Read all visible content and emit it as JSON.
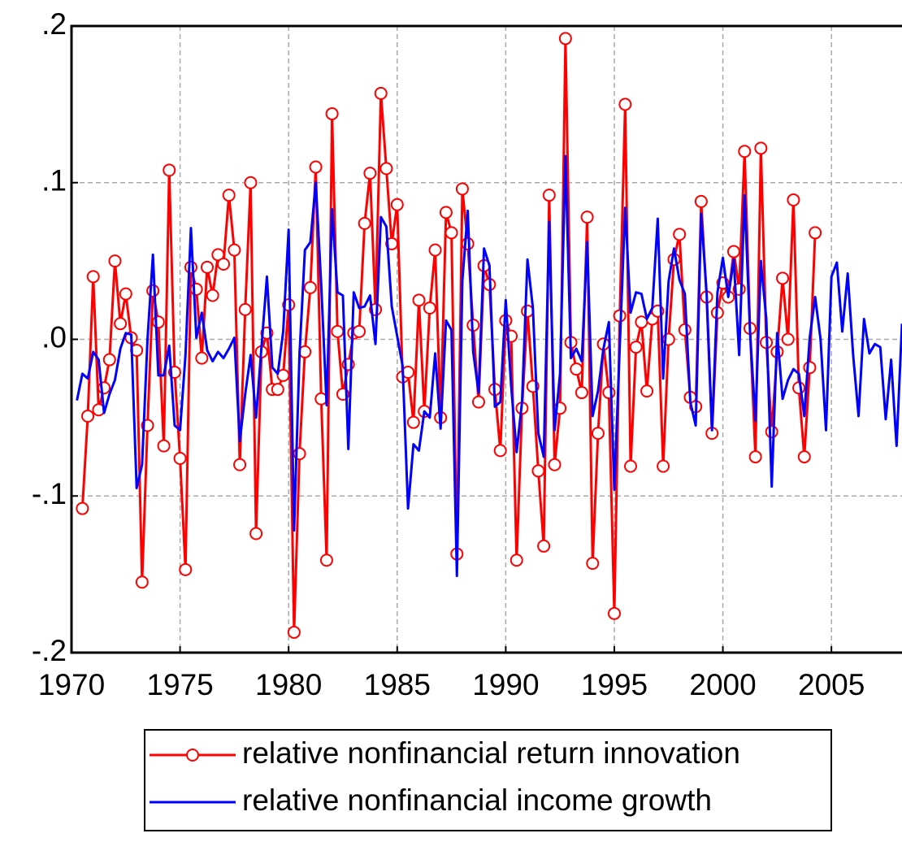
{
  "chart_data": {
    "type": "line",
    "x": [
      1970.25,
      1970.5,
      1970.75,
      1971,
      1971.25,
      1971.5,
      1971.75,
      1972,
      1972.25,
      1972.5,
      1972.75,
      1973,
      1973.25,
      1973.5,
      1973.75,
      1974,
      1974.25,
      1974.5,
      1974.75,
      1975,
      1975.25,
      1975.5,
      1975.75,
      1976,
      1976.25,
      1976.5,
      1976.75,
      1977,
      1977.25,
      1977.5,
      1977.75,
      1978,
      1978.25,
      1978.5,
      1978.75,
      1979,
      1979.25,
      1979.5,
      1979.75,
      1980,
      1980.25,
      1980.5,
      1980.75,
      1981,
      1981.25,
      1981.5,
      1981.75,
      1982,
      1982.25,
      1982.5,
      1982.75,
      1983,
      1983.25,
      1983.5,
      1983.75,
      1984,
      1984.25,
      1984.5,
      1984.75,
      1985,
      1985.25,
      1985.5,
      1985.75,
      1986,
      1986.25,
      1986.5,
      1986.75,
      1987,
      1987.25,
      1987.5,
      1987.75,
      1988,
      1988.25,
      1988.5,
      1988.75,
      1989,
      1989.25,
      1989.5,
      1989.75,
      1990,
      1990.25,
      1990.5,
      1990.75,
      1991,
      1991.25,
      1991.5,
      1991.75,
      1992,
      1992.25,
      1992.5,
      1992.75,
      1993,
      1993.25,
      1993.5,
      1993.75,
      1994,
      1994.25,
      1994.5,
      1994.75,
      1995,
      1995.25,
      1995.5,
      1995.75,
      1996,
      1996.25,
      1996.5,
      1996.75,
      1997,
      1997.25,
      1997.5,
      1997.75,
      1998,
      1998.25,
      1998.5,
      1998.75,
      1999,
      1999.25,
      1999.5,
      1999.75,
      2000,
      2000.25,
      2000.5,
      2000.75,
      2001,
      2001.25,
      2001.5,
      2001.75,
      2002,
      2002.25,
      2002.5,
      2002.75,
      2003,
      2003.25,
      2003.5,
      2003.75,
      2004,
      2004.25,
      2004.5,
      2004.75,
      2005,
      2005.25,
      2005.5,
      2005.75,
      2006,
      2006.25,
      2006.5,
      2006.75,
      2007,
      2007.25,
      2007.5,
      2007.75,
      2008,
      2008.25
    ],
    "series": [
      {
        "name": "relative nonfinancial return innovation",
        "color": "#ff0000",
        "marker": "circle",
        "values": [
          null,
          -0.108,
          -0.049,
          0.04,
          -0.045,
          -0.031,
          -0.013,
          0.05,
          0.01,
          0.029,
          0.001,
          -0.007,
          -0.155,
          -0.055,
          0.031,
          0.011,
          -0.068,
          0.108,
          -0.021,
          -0.076,
          -0.147,
          0.046,
          0.032,
          -0.012,
          0.046,
          0.028,
          0.054,
          0.048,
          0.092,
          0.057,
          -0.08,
          0.019,
          0.1,
          -0.124,
          -0.008,
          0.004,
          -0.032,
          -0.032,
          -0.023,
          0.022,
          -0.187,
          -0.073,
          -0.008,
          0.033,
          0.11,
          -0.038,
          -0.141,
          0.144,
          0.005,
          -0.035,
          -0.016,
          0.004,
          0.005,
          0.074,
          0.106,
          0.019,
          0.157,
          0.109,
          0.061,
          0.086,
          -0.024,
          -0.021,
          -0.053,
          0.025,
          -0.046,
          0.02,
          0.057,
          -0.05,
          0.081,
          0.068,
          -0.137,
          0.096,
          0.061,
          0.009,
          -0.04,
          0.047,
          0.035,
          -0.032,
          -0.071,
          0.012,
          0.002,
          -0.141,
          -0.044,
          0.018,
          -0.03,
          -0.084,
          -0.132,
          0.092,
          -0.08,
          -0.044,
          0.192,
          -0.002,
          -0.019,
          -0.034,
          0.078,
          -0.143,
          -0.06,
          -0.003,
          -0.034,
          -0.175,
          0.015,
          0.15,
          -0.081,
          -0.005,
          0.011,
          -0.033,
          0.013,
          0.018,
          -0.081,
          0.0,
          0.051,
          0.067,
          0.006,
          -0.037,
          -0.043,
          0.088,
          0.027,
          -0.06,
          0.017,
          0.036,
          0.027,
          0.056,
          0.032,
          0.12,
          0.007,
          -0.075,
          0.122,
          -0.002,
          -0.059,
          -0.008,
          0.039,
          0.0,
          0.089,
          -0.031,
          -0.075,
          -0.018,
          0.068,
          null,
          null,
          null,
          null,
          null,
          null,
          null,
          null,
          null,
          null,
          null,
          null,
          null,
          null,
          null,
          null
        ]
      },
      {
        "name": "relative nonfinancial income growth",
        "color": "#0000ff",
        "values": [
          -0.039,
          -0.022,
          -0.025,
          -0.008,
          -0.013,
          -0.047,
          -0.035,
          -0.026,
          -0.006,
          0.004,
          0.003,
          -0.095,
          -0.08,
          0.0,
          0.054,
          -0.023,
          -0.023,
          -0.004,
          -0.055,
          -0.058,
          -0.01,
          0.071,
          0.001,
          0.017,
          -0.007,
          -0.014,
          -0.008,
          -0.012,
          -0.006,
          0.001,
          -0.065,
          -0.035,
          -0.01,
          -0.05,
          -0.005,
          0.04,
          -0.018,
          -0.022,
          0.005,
          0.07,
          -0.122,
          -0.01,
          0.057,
          0.062,
          0.1,
          0.035,
          -0.042,
          0.083,
          0.03,
          0.028,
          -0.07,
          0.03,
          0.02,
          0.021,
          0.028,
          -0.003,
          0.078,
          0.072,
          0.021,
          0.002,
          -0.017,
          -0.108,
          -0.067,
          -0.071,
          -0.046,
          -0.05,
          -0.009,
          -0.057,
          0.012,
          0.006,
          -0.151,
          0.037,
          0.082,
          -0.008,
          -0.034,
          0.058,
          0.047,
          -0.043,
          -0.04,
          0.025,
          -0.03,
          -0.072,
          -0.04,
          0.051,
          0.02,
          -0.06,
          -0.075,
          0.075,
          -0.058,
          -0.022,
          0.117,
          -0.012,
          -0.006,
          -0.014,
          0.062,
          -0.049,
          -0.033,
          -0.006,
          0.011,
          -0.096,
          -0.005,
          0.084,
          0.017,
          0.03,
          0.029,
          0.013,
          0.02,
          0.077,
          -0.025,
          0.037,
          0.058,
          0.038,
          0.029,
          -0.04,
          -0.055,
          0.08,
          0.03,
          -0.058,
          0.03,
          0.052,
          0.027,
          0.051,
          -0.01,
          0.092,
          0.005,
          -0.052,
          0.05,
          0.013,
          -0.094,
          0.004,
          -0.038,
          -0.026,
          -0.019,
          -0.022,
          -0.049,
          0.001,
          0.027,
          0.0,
          -0.058,
          0.04,
          0.049,
          0.005,
          0.042,
          -0.01,
          -0.049,
          0.013,
          -0.009,
          -0.003,
          -0.005,
          -0.051,
          -0.013,
          -0.068,
          0.01
        ]
      }
    ],
    "xlim": [
      1970,
      2008.25
    ],
    "ylim": [
      -0.2,
      0.2
    ],
    "xticks": [
      1970,
      1975,
      1980,
      1985,
      1990,
      1995,
      2000,
      2005
    ],
    "yticks": [
      {
        "value": -0.2,
        "label": "-.2"
      },
      {
        "value": -0.1,
        "label": "-.1"
      },
      {
        "value": 0,
        "label": ".0"
      },
      {
        "value": 0.1,
        "label": ".1"
      },
      {
        "value": 0.2,
        "label": ".2"
      }
    ],
    "grid": true,
    "legend": "bottom"
  }
}
